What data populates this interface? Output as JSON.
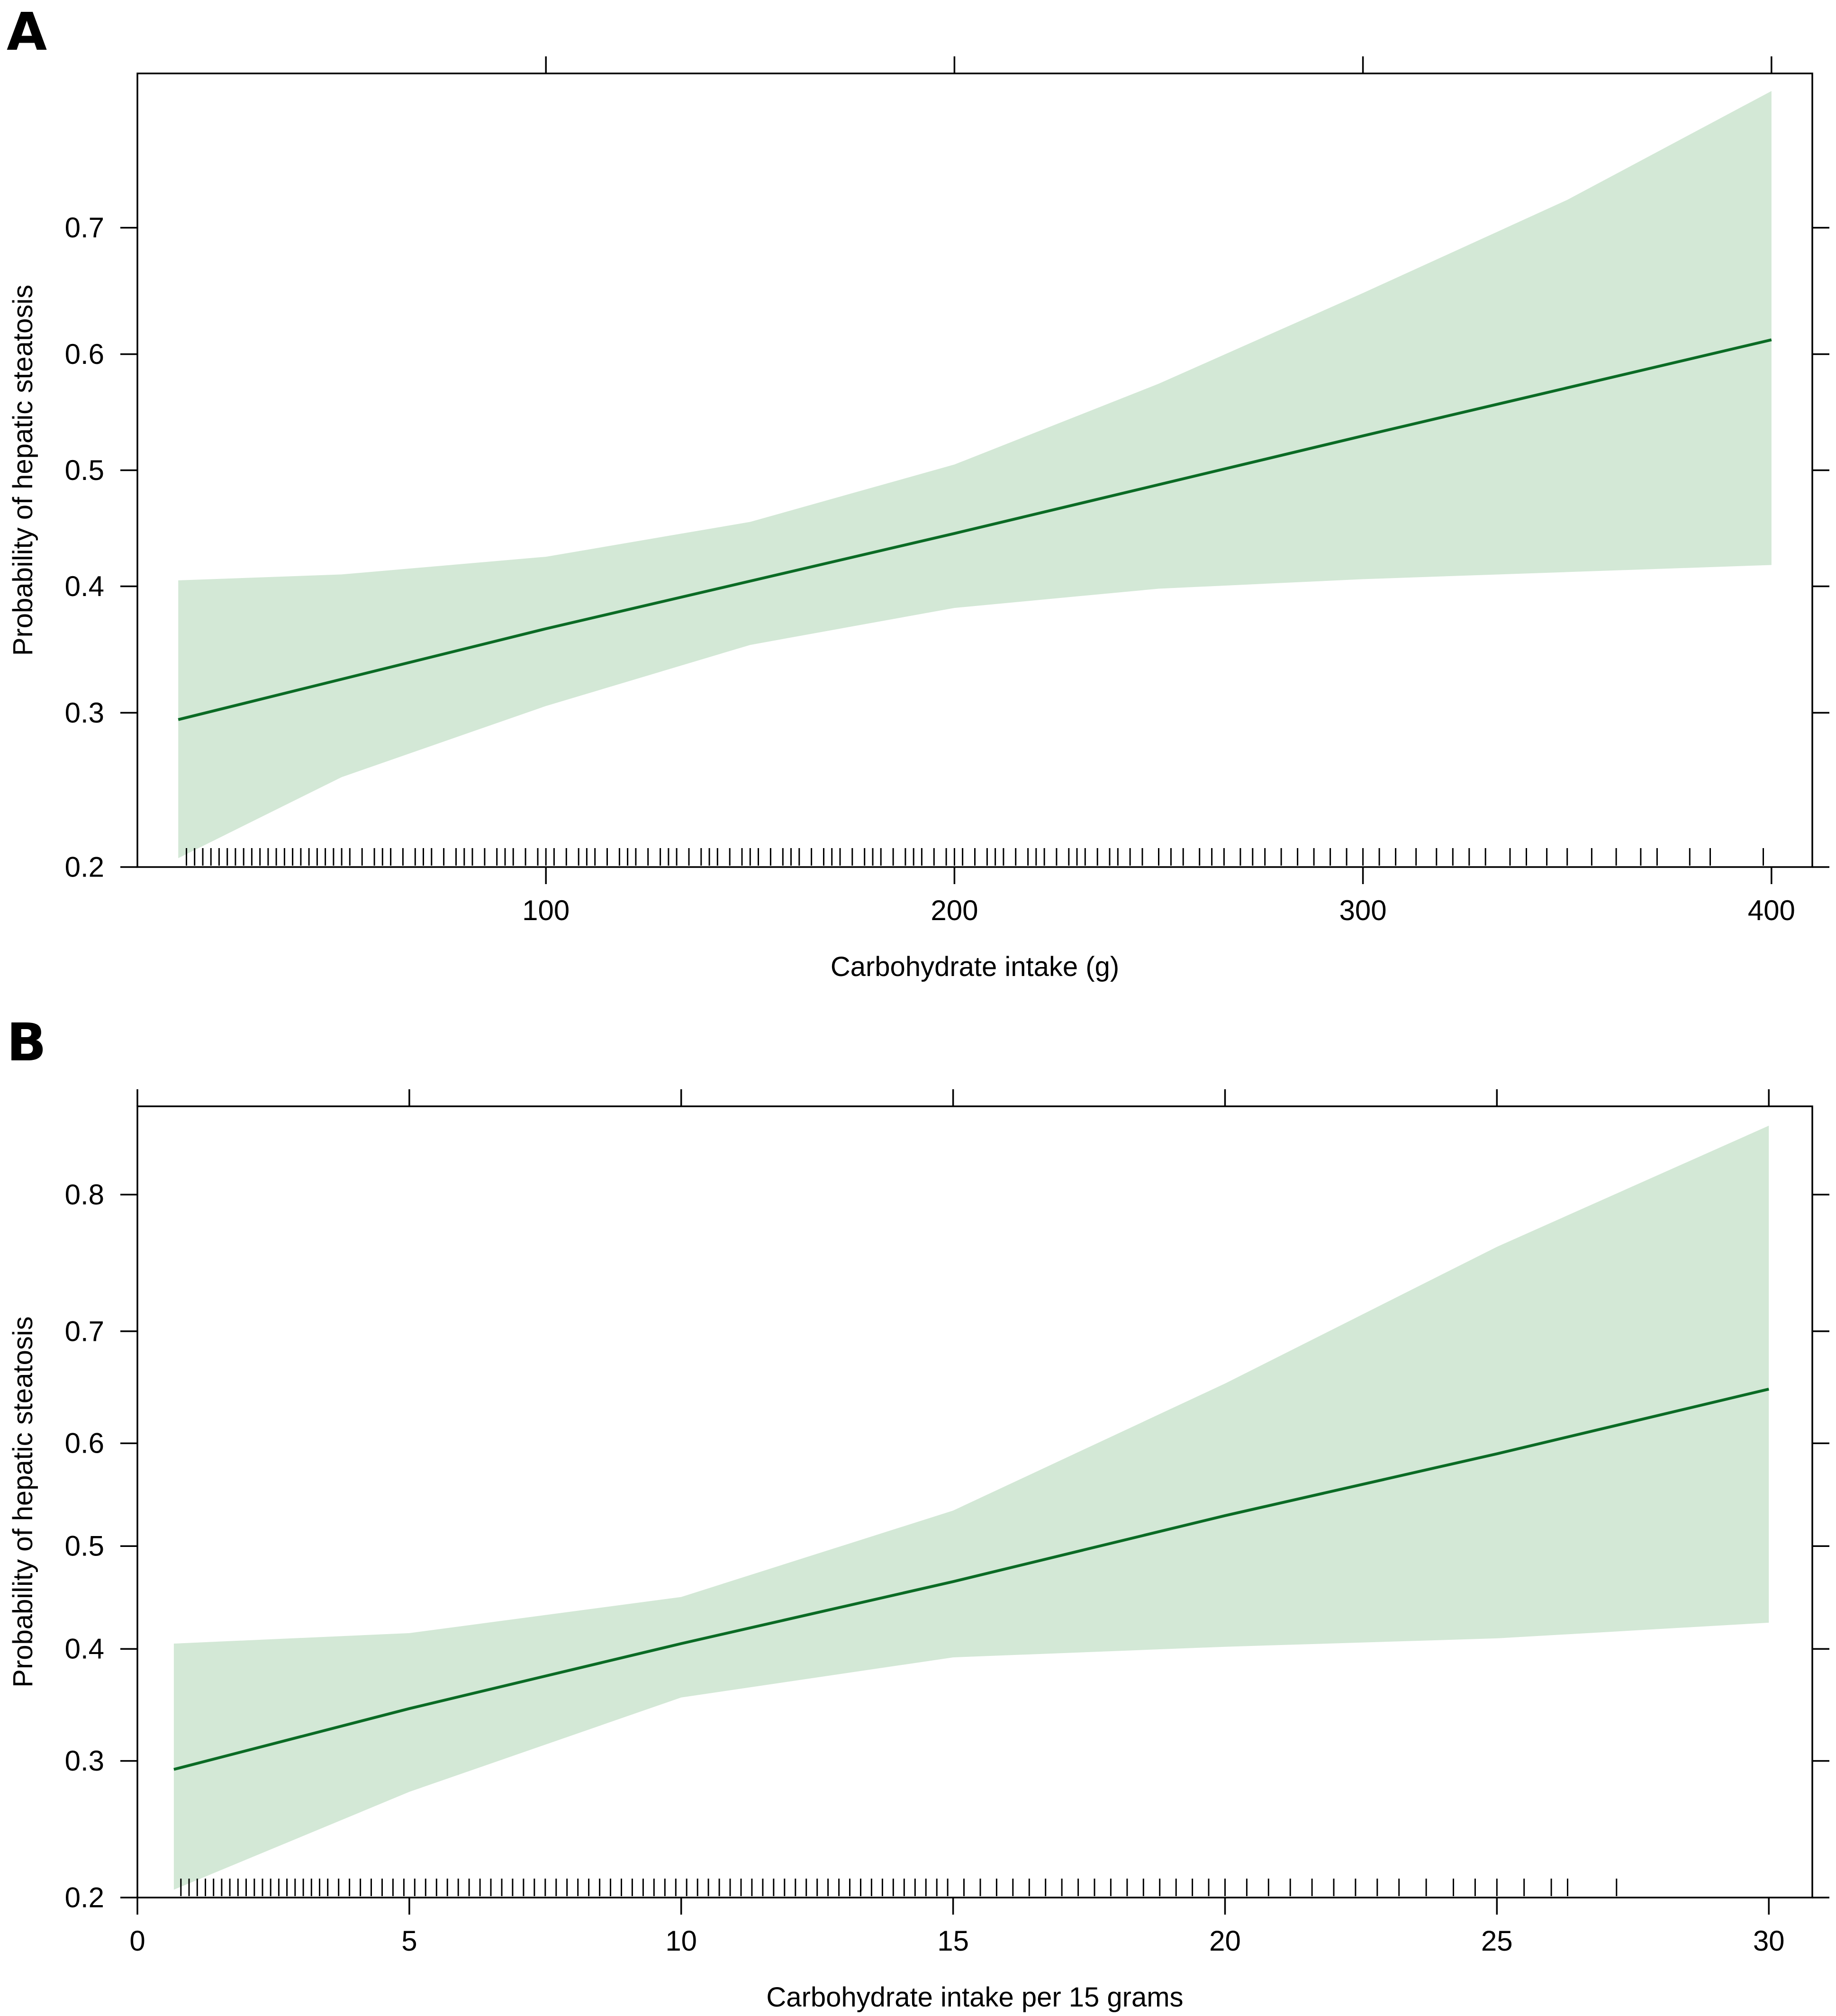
{
  "chart_data": [
    {
      "panel": "A",
      "type": "line",
      "title": "",
      "xlabel": "Carbohydrate intake (g)",
      "ylabel": "Probability of hepatic steatosis",
      "xlim": [
        0,
        410
      ],
      "ylim": [
        0.2,
        0.8
      ],
      "y_scale": "logit",
      "x_ticks": [
        100,
        200,
        300,
        400
      ],
      "y_ticks": [
        0.2,
        0.3,
        0.4,
        0.5,
        0.6,
        0.7
      ],
      "fit_color": "#0b6b25",
      "band_color": "#d3e8d6",
      "series": [
        {
          "name": "fit",
          "x": [
            10,
            100,
            200,
            300,
            400
          ],
          "y": [
            0.295,
            0.365,
            0.445,
            0.53,
            0.612
          ]
        },
        {
          "name": "ci_upper",
          "x": [
            10,
            50,
            100,
            150,
            200,
            250,
            300,
            350,
            400
          ],
          "y": [
            0.405,
            0.41,
            0.425,
            0.455,
            0.505,
            0.575,
            0.65,
            0.72,
            0.79
          ]
        },
        {
          "name": "ci_lower",
          "x": [
            10,
            50,
            100,
            150,
            200,
            250,
            300,
            350,
            400
          ],
          "y": [
            0.205,
            0.255,
            0.305,
            0.352,
            0.382,
            0.398,
            0.406,
            0.412,
            0.418
          ]
        }
      ],
      "rug": [
        12,
        14,
        16,
        18,
        20,
        22,
        24,
        26,
        28,
        30,
        32,
        34,
        36,
        38,
        40,
        42,
        44,
        46,
        48,
        50,
        52,
        55,
        58,
        60,
        62,
        65,
        68,
        70,
        72,
        75,
        78,
        80,
        82,
        85,
        88,
        90,
        92,
        95,
        98,
        100,
        102,
        105,
        108,
        110,
        112,
        115,
        118,
        120,
        122,
        125,
        128,
        130,
        132,
        135,
        138,
        140,
        142,
        145,
        148,
        150,
        152,
        155,
        158,
        160,
        162,
        165,
        168,
        170,
        172,
        175,
        178,
        180,
        182,
        185,
        188,
        190,
        192,
        195,
        198,
        200,
        202,
        205,
        208,
        210,
        212,
        215,
        218,
        220,
        222,
        225,
        228,
        230,
        232,
        235,
        238,
        240,
        243,
        246,
        250,
        253,
        256,
        260,
        263,
        266,
        270,
        273,
        276,
        280,
        284,
        288,
        292,
        296,
        300,
        304,
        308,
        313,
        318,
        322,
        326,
        330,
        336,
        340,
        345,
        350,
        356,
        362,
        368,
        372,
        380,
        385,
        398
      ]
    },
    {
      "panel": "B",
      "type": "line",
      "title": "",
      "xlabel": "Carbohydrate intake per 15 grams",
      "ylabel": "Probability of hepatic steatosis",
      "xlim": [
        0,
        30.8
      ],
      "ylim": [
        0.2,
        0.85
      ],
      "y_scale": "logit",
      "x_ticks": [
        0,
        5,
        10,
        15,
        20,
        25,
        30
      ],
      "y_ticks": [
        0.2,
        0.3,
        0.4,
        0.5,
        0.6,
        0.7,
        0.8
      ],
      "fit_color": "#0b6b25",
      "band_color": "#d3e8d6",
      "series": [
        {
          "name": "fit",
          "x": [
            0.67,
            5,
            10,
            15,
            20,
            25,
            30
          ],
          "y": [
            0.293,
            0.345,
            0.405,
            0.465,
            0.53,
            0.59,
            0.65
          ]
        },
        {
          "name": "ci_upper",
          "x": [
            0.67,
            5,
            10,
            15,
            20,
            25,
            30
          ],
          "y": [
            0.405,
            0.415,
            0.45,
            0.535,
            0.655,
            0.765,
            0.84
          ]
        },
        {
          "name": "ci_lower",
          "x": [
            0.67,
            5,
            10,
            15,
            20,
            25,
            30
          ],
          "y": [
            0.205,
            0.275,
            0.355,
            0.392,
            0.402,
            0.41,
            0.425
          ]
        }
      ],
      "rug": [
        0.8,
        0.95,
        1.1,
        1.25,
        1.4,
        1.55,
        1.7,
        1.85,
        2.0,
        2.15,
        2.3,
        2.45,
        2.6,
        2.75,
        2.9,
        3.05,
        3.2,
        3.35,
        3.5,
        3.7,
        3.9,
        4.1,
        4.3,
        4.5,
        4.7,
        4.9,
        5.1,
        5.3,
        5.5,
        5.7,
        5.9,
        6.1,
        6.3,
        6.5,
        6.7,
        6.9,
        7.1,
        7.3,
        7.5,
        7.7,
        7.9,
        8.1,
        8.3,
        8.5,
        8.7,
        8.9,
        9.1,
        9.3,
        9.5,
        9.7,
        9.9,
        10.1,
        10.3,
        10.5,
        10.7,
        10.9,
        11.1,
        11.3,
        11.5,
        11.7,
        11.9,
        12.1,
        12.3,
        12.5,
        12.7,
        12.9,
        13.1,
        13.3,
        13.5,
        13.7,
        13.9,
        14.1,
        14.3,
        14.5,
        14.7,
        14.9,
        15.2,
        15.5,
        15.8,
        16.1,
        16.4,
        16.7,
        17.0,
        17.3,
        17.6,
        17.9,
        18.2,
        18.5,
        18.8,
        19.1,
        19.4,
        19.7,
        20.0,
        20.4,
        20.8,
        21.2,
        21.6,
        22.0,
        22.4,
        22.8,
        23.2,
        23.7,
        24.2,
        24.6,
        25.0,
        25.5,
        26.0,
        26.3,
        27.2
      ]
    }
  ],
  "panels": [
    {
      "letter": "A"
    },
    {
      "letter": "B"
    }
  ]
}
